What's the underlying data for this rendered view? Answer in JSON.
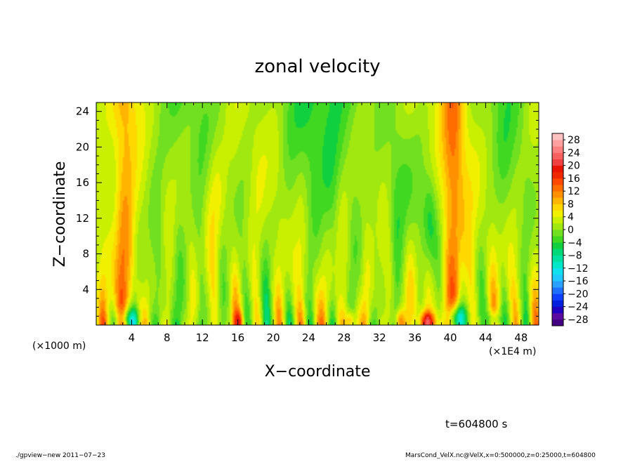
{
  "chart_data": {
    "type": "heatmap",
    "title": "zonal velocity",
    "xlabel": "X−coordinate",
    "ylabel": "Z−coordinate",
    "x_unit_label": "(×1E4 m)",
    "y_unit_label": "(×1000 m)",
    "xlim": [
      0,
      50
    ],
    "ylim": [
      0,
      25
    ],
    "x_ticks": [
      4,
      8,
      12,
      16,
      20,
      24,
      28,
      32,
      36,
      40,
      44,
      48
    ],
    "y_ticks": [
      4,
      8,
      12,
      16,
      20,
      24
    ],
    "x_tick_labels": [
      "4",
      "8",
      "12",
      "16",
      "20",
      "24",
      "28",
      "32",
      "36",
      "40",
      "44",
      "48"
    ],
    "y_tick_labels": [
      "4",
      "8",
      "12",
      "16",
      "20",
      "24"
    ],
    "colorbar": {
      "levels": [
        -30,
        -28,
        -26,
        -24,
        -22,
        -20,
        -18,
        -16,
        -14,
        -12,
        -10,
        -8,
        -6,
        -4,
        -2,
        0,
        2,
        4,
        6,
        8,
        10,
        12,
        14,
        16,
        18,
        20,
        22,
        24,
        26,
        28,
        30
      ],
      "label_values": [
        "28",
        "24",
        "20",
        "16",
        "12",
        "8",
        "4",
        "0",
        "−4",
        "−8",
        "−12",
        "−16",
        "−20",
        "−24",
        "−28"
      ],
      "colors": [
        "#400080",
        "#5a0aa0",
        "#2000c0",
        "#0020e0",
        "#1040ff",
        "#2070ff",
        "#2aa0ff",
        "#20c8ff",
        "#10e0f0",
        "#00e8c8",
        "#00e0a0",
        "#00d878",
        "#10d040",
        "#40d820",
        "#70e020",
        "#a0e810",
        "#c8f000",
        "#f0f000",
        "#ffd800",
        "#ffb400",
        "#ff9000",
        "#ff6c00",
        "#ff4800",
        "#f02800",
        "#e81400",
        "#f04040",
        "#f86060",
        "#ff8080",
        "#ffa0a0",
        "#ffc0c0"
      ]
    },
    "features": [
      {
        "kind": "warm band",
        "x_center": 3.2,
        "z_range": [
          0,
          25
        ],
        "peak": 12
      },
      {
        "kind": "warm band",
        "x_center": 40.5,
        "z_range": [
          0,
          25
        ],
        "peak": 12
      },
      {
        "kind": "cold streak",
        "x_center": 37.6,
        "z_range": [
          4,
          16
        ],
        "peak": -10
      },
      {
        "kind": "near-surface extremes",
        "z_range": [
          0,
          2
        ],
        "min": -18,
        "max": 22
      }
    ]
  },
  "annotations": {
    "time": "t=604800 s",
    "footer_left": "./gpview−new   2011−07−23",
    "footer_right": "MarsCond_VelX.nc@VelX,x=0:500000,z=0:25000,t=604800"
  }
}
